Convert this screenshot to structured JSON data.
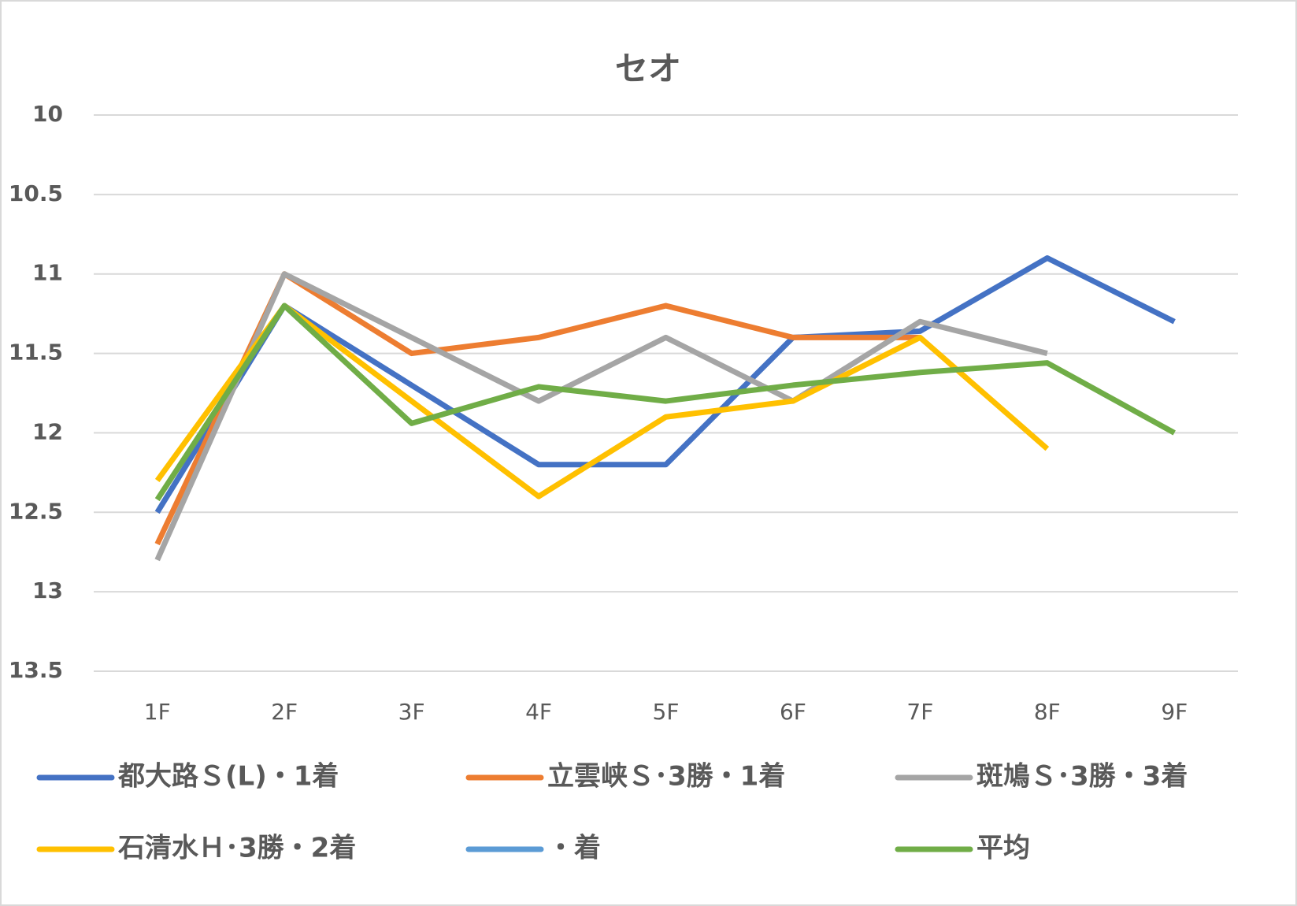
{
  "chart_data": {
    "type": "line",
    "title": "セオ",
    "categories": [
      "1F",
      "2F",
      "3F",
      "4F",
      "5F",
      "6F",
      "7F",
      "8F",
      "9F"
    ],
    "series": [
      {
        "name": "都大路Ｓ(L)・1着",
        "color": "#4472c4",
        "values": [
          12.5,
          11.2,
          11.7,
          12.2,
          12.2,
          11.4,
          11.36,
          10.9,
          11.3
        ]
      },
      {
        "name": "立雲峡Ｓ･3勝・1着",
        "color": "#ed7d31",
        "values": [
          12.7,
          11.0,
          11.5,
          11.4,
          11.2,
          11.4,
          11.4,
          null,
          null
        ]
      },
      {
        "name": "斑鳩Ｓ･3勝・3着",
        "color": "#a5a5a5",
        "values": [
          12.8,
          11.0,
          11.4,
          11.8,
          11.4,
          11.8,
          11.3,
          11.5,
          null
        ]
      },
      {
        "name": "石清水Ｈ･3勝・2着",
        "color": "#ffc000",
        "values": [
          12.3,
          11.2,
          11.8,
          12.4,
          11.9,
          11.8,
          11.4,
          12.1,
          null
        ]
      },
      {
        "name": "・着",
        "color": "#5b9bd5",
        "values": [
          null,
          null,
          null,
          null,
          null,
          null,
          null,
          null,
          null
        ]
      },
      {
        "name": "平均",
        "color": "#70ad47",
        "values": [
          12.42,
          11.2,
          11.94,
          11.71,
          11.8,
          11.7,
          11.62,
          11.56,
          12.0
        ]
      }
    ],
    "ylim": [
      10,
      13.5
    ],
    "yticks": [
      10,
      10.5,
      11,
      11.5,
      12,
      12.5,
      13,
      13.5
    ],
    "y_inverted": true,
    "grid": true,
    "legend": "bottom"
  }
}
